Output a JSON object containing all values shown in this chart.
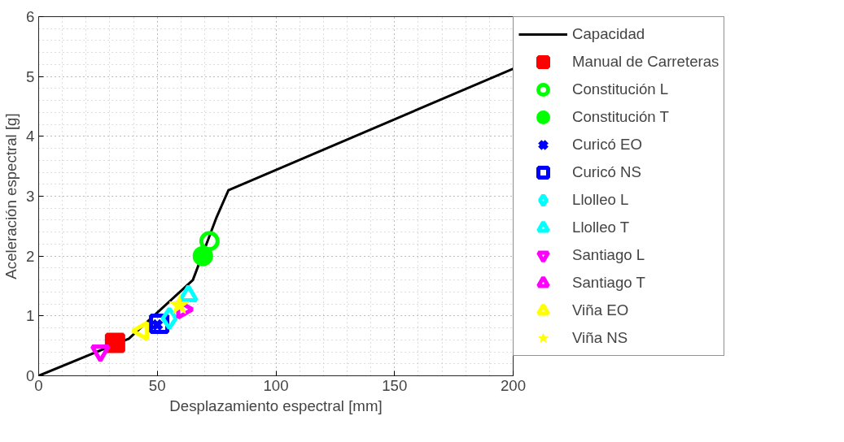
{
  "chart_data": {
    "type": "scatter",
    "xlabel": "Desplazamiento espectral [mm]",
    "ylabel": "Aceleración espectral [g]",
    "xlim": [
      0,
      200
    ],
    "ylim": [
      0,
      6
    ],
    "xticks": [
      0,
      50,
      100,
      150,
      200
    ],
    "yticks": [
      0,
      1,
      2,
      3,
      4,
      5,
      6
    ],
    "grid": true,
    "legend": "right",
    "series": [
      {
        "name": "Capacidad",
        "type": "line",
        "color": "#000000",
        "marker": "none",
        "x": [
          0,
          38,
          65,
          75,
          80,
          200
        ],
        "values": [
          0,
          0.62,
          1.6,
          2.65,
          3.1,
          5.13
        ]
      },
      {
        "name": "Manual de Carreteras",
        "color": "#ff0000",
        "marker": "square",
        "x": [
          32.2
        ],
        "values": [
          0.55
        ]
      },
      {
        "name": "Constitución L",
        "color": "#00ff00",
        "marker": "circle_open",
        "x": [
          72.0
        ],
        "values": [
          2.25
        ]
      },
      {
        "name": "Constitución T",
        "color": "#00ff00",
        "marker": "circle",
        "x": [
          69.2
        ],
        "values": [
          2.0
        ]
      },
      {
        "name": "Curicó EO",
        "color": "#0000ff",
        "marker": "cross",
        "x": [
          50.0
        ],
        "values": [
          0.85
        ]
      },
      {
        "name": "Curicó NS",
        "color": "#0000ff",
        "marker": "square_open",
        "x": [
          50.8
        ],
        "values": [
          0.87
        ]
      },
      {
        "name": "Llolleo L",
        "color": "#00ffff",
        "marker": "diamond_open",
        "x": [
          55.1
        ],
        "values": [
          0.96
        ]
      },
      {
        "name": "Llolleo T",
        "color": "#00ffff",
        "marker": "triangle_open",
        "x": [
          63.1
        ],
        "values": [
          1.34
        ]
      },
      {
        "name": "Santiago L",
        "color": "#ff00ff",
        "marker": "triangle_down_open",
        "x": [
          26.0
        ],
        "values": [
          0.41
        ]
      },
      {
        "name": "Santiago T",
        "color": "#ff00ff",
        "marker": "triangle_right_open",
        "x": [
          60.8
        ],
        "values": [
          1.11
        ]
      },
      {
        "name": "Viña EO",
        "color": "#ffff00",
        "marker": "triangle_left_open",
        "x": [
          43.7
        ],
        "values": [
          0.75
        ]
      },
      {
        "name": "Viña NS",
        "color": "#ffff00",
        "marker": "star",
        "x": [
          59.3
        ],
        "values": [
          1.18
        ]
      }
    ]
  }
}
